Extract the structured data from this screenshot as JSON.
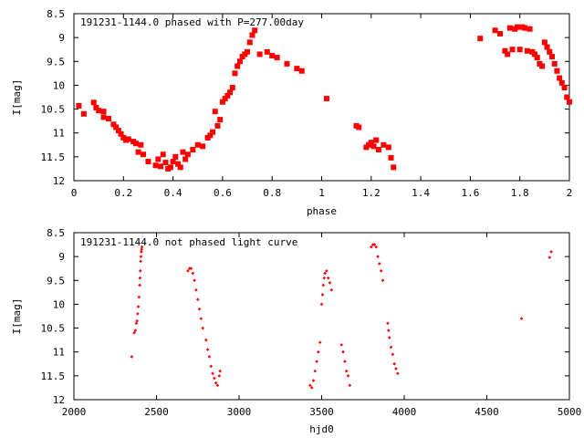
{
  "chart_data": [
    {
      "type": "scatter",
      "title": "191231-1144.0 phased with P=277.00day",
      "xlabel": "phase",
      "ylabel": "I[mag]",
      "xlim": [
        0,
        2
      ],
      "ylim": [
        12,
        8.5
      ],
      "y_inverted": true,
      "xticks": [
        0,
        0.2,
        0.4,
        0.6,
        0.8,
        1,
        1.2,
        1.4,
        1.6,
        1.8,
        2
      ],
      "xtick_labels": [
        "0",
        "0.2",
        "0.4",
        "0.6",
        "0.8",
        "1",
        "1.2",
        "1.4",
        "1.6",
        "1.8",
        "2"
      ],
      "yticks": [
        8.5,
        9,
        9.5,
        10,
        10.5,
        11,
        11.5,
        12
      ],
      "ytick_labels": [
        "8.5",
        "9",
        "9.5",
        "10",
        "10.5",
        "11",
        "11.5",
        "12"
      ],
      "grid": false,
      "marker": "filled-square",
      "color": "#ff0000",
      "series": [
        {
          "points": [
            [
              0.02,
              10.43
            ],
            [
              0.04,
              10.6
            ],
            [
              0.08,
              10.36
            ],
            [
              0.09,
              10.47
            ],
            [
              0.1,
              10.53
            ],
            [
              0.12,
              10.55
            ],
            [
              0.12,
              10.67
            ],
            [
              0.14,
              10.7
            ],
            [
              0.16,
              10.82
            ],
            [
              0.17,
              10.88
            ],
            [
              0.18,
              10.95
            ],
            [
              0.19,
              11.02
            ],
            [
              0.2,
              11.1
            ],
            [
              0.21,
              11.15
            ],
            [
              0.22,
              11.13
            ],
            [
              0.24,
              11.18
            ],
            [
              0.25,
              11.22
            ],
            [
              0.26,
              11.4
            ],
            [
              0.27,
              11.25
            ],
            [
              0.28,
              11.45
            ],
            [
              0.3,
              11.6
            ],
            [
              0.33,
              11.68
            ],
            [
              0.34,
              11.55
            ],
            [
              0.35,
              11.7
            ],
            [
              0.36,
              11.45
            ],
            [
              0.37,
              11.62
            ],
            [
              0.38,
              11.75
            ],
            [
              0.39,
              11.72
            ],
            [
              0.4,
              11.6
            ],
            [
              0.41,
              11.5
            ],
            [
              0.42,
              11.65
            ],
            [
              0.43,
              11.72
            ],
            [
              0.44,
              11.4
            ],
            [
              0.45,
              11.55
            ],
            [
              0.46,
              11.45
            ],
            [
              0.48,
              11.35
            ],
            [
              0.5,
              11.25
            ],
            [
              0.52,
              11.28
            ],
            [
              0.54,
              11.1
            ],
            [
              0.55,
              11.05
            ],
            [
              0.56,
              10.98
            ],
            [
              0.57,
              10.55
            ],
            [
              0.58,
              10.85
            ],
            [
              0.59,
              10.72
            ],
            [
              0.6,
              10.35
            ],
            [
              0.61,
              10.28
            ],
            [
              0.62,
              10.22
            ],
            [
              0.63,
              10.15
            ],
            [
              0.64,
              10.05
            ],
            [
              0.65,
              9.75
            ],
            [
              0.66,
              9.6
            ],
            [
              0.67,
              9.5
            ],
            [
              0.68,
              9.4
            ],
            [
              0.69,
              9.35
            ],
            [
              0.7,
              9.3
            ],
            [
              0.71,
              9.1
            ],
            [
              0.72,
              8.95
            ],
            [
              0.73,
              8.85
            ],
            [
              0.75,
              9.35
            ],
            [
              0.78,
              9.3
            ],
            [
              0.8,
              9.38
            ],
            [
              0.82,
              9.42
            ],
            [
              0.86,
              9.55
            ],
            [
              0.9,
              9.65
            ],
            [
              0.92,
              9.7
            ],
            [
              1.02,
              10.28
            ],
            [
              1.14,
              10.85
            ],
            [
              1.15,
              10.88
            ],
            [
              1.18,
              11.3
            ],
            [
              1.19,
              11.25
            ],
            [
              1.2,
              11.2
            ],
            [
              1.21,
              11.28
            ],
            [
              1.22,
              11.15
            ],
            [
              1.23,
              11.35
            ],
            [
              1.25,
              11.25
            ],
            [
              1.27,
              11.3
            ],
            [
              1.28,
              11.52
            ],
            [
              1.29,
              11.72
            ],
            [
              1.64,
              9.02
            ],
            [
              1.7,
              8.85
            ],
            [
              1.72,
              8.92
            ],
            [
              1.74,
              9.28
            ],
            [
              1.75,
              9.35
            ],
            [
              1.76,
              8.8
            ],
            [
              1.77,
              9.25
            ],
            [
              1.78,
              8.82
            ],
            [
              1.79,
              8.78
            ],
            [
              1.8,
              9.25
            ],
            [
              1.81,
              8.78
            ],
            [
              1.82,
              8.8
            ],
            [
              1.83,
              9.28
            ],
            [
              1.84,
              8.82
            ],
            [
              1.85,
              9.3
            ],
            [
              1.86,
              9.35
            ],
            [
              1.87,
              9.42
            ],
            [
              1.88,
              9.55
            ],
            [
              1.89,
              9.6
            ],
            [
              1.9,
              9.1
            ],
            [
              1.91,
              9.2
            ],
            [
              1.92,
              9.3
            ],
            [
              1.93,
              9.4
            ],
            [
              1.94,
              9.55
            ],
            [
              1.95,
              9.7
            ],
            [
              1.96,
              9.85
            ],
            [
              1.97,
              9.95
            ],
            [
              1.98,
              10.05
            ],
            [
              1.99,
              10.25
            ],
            [
              2.0,
              10.35
            ]
          ]
        }
      ]
    },
    {
      "type": "scatter",
      "title": "191231-1144.0 not phased light curve",
      "xlabel": "hjd0",
      "ylabel": "I[mag]",
      "xlim": [
        2000,
        5000
      ],
      "ylim": [
        12,
        8.5
      ],
      "y_inverted": true,
      "xticks": [
        2000,
        2500,
        3000,
        3500,
        4000,
        4500,
        5000
      ],
      "xtick_labels": [
        "2000",
        "2500",
        "3000",
        "3500",
        "4000",
        "4500",
        "5000"
      ],
      "yticks": [
        8.5,
        9,
        9.5,
        10,
        10.5,
        11,
        11.5,
        12
      ],
      "ytick_labels": [
        "8.5",
        "9",
        "9.5",
        "10",
        "10.5",
        "11",
        "11.5",
        "12"
      ],
      "grid": false,
      "marker": "small-diamond",
      "color": "#ff0000",
      "series": [
        {
          "points": [
            [
              2350,
              11.1
            ],
            [
              2365,
              10.6
            ],
            [
              2372,
              10.55
            ],
            [
              2378,
              10.4
            ],
            [
              2382,
              10.35
            ],
            [
              2386,
              10.2
            ],
            [
              2390,
              10.05
            ],
            [
              2394,
              9.85
            ],
            [
              2398,
              9.6
            ],
            [
              2400,
              9.45
            ],
            [
              2402,
              9.3
            ],
            [
              2404,
              9.1
            ],
            [
              2406,
              9.0
            ],
            [
              2408,
              8.9
            ],
            [
              2410,
              8.85
            ],
            [
              2412,
              8.8
            ],
            [
              2690,
              9.3
            ],
            [
              2700,
              9.25
            ],
            [
              2710,
              9.25
            ],
            [
              2720,
              9.35
            ],
            [
              2730,
              9.5
            ],
            [
              2740,
              9.7
            ],
            [
              2750,
              9.9
            ],
            [
              2760,
              10.1
            ],
            [
              2770,
              10.3
            ],
            [
              2780,
              10.5
            ],
            [
              2800,
              10.75
            ],
            [
              2810,
              10.95
            ],
            [
              2820,
              11.1
            ],
            [
              2830,
              11.3
            ],
            [
              2840,
              11.45
            ],
            [
              2850,
              11.55
            ],
            [
              2860,
              11.65
            ],
            [
              2870,
              11.7
            ],
            [
              2880,
              11.5
            ],
            [
              2885,
              11.4
            ],
            [
              3430,
              11.7
            ],
            [
              3440,
              11.75
            ],
            [
              3450,
              11.6
            ],
            [
              3460,
              11.4
            ],
            [
              3470,
              11.2
            ],
            [
              3480,
              11.0
            ],
            [
              3490,
              10.8
            ],
            [
              3500,
              10.0
            ],
            [
              3505,
              9.8
            ],
            [
              3510,
              9.6
            ],
            [
              3515,
              9.45
            ],
            [
              3520,
              9.35
            ],
            [
              3530,
              9.3
            ],
            [
              3540,
              9.45
            ],
            [
              3550,
              9.55
            ],
            [
              3560,
              9.7
            ],
            [
              3620,
              10.85
            ],
            [
              3630,
              11.0
            ],
            [
              3640,
              11.2
            ],
            [
              3650,
              11.4
            ],
            [
              3660,
              11.5
            ],
            [
              3670,
              11.7
            ],
            [
              3800,
              8.8
            ],
            [
              3810,
              8.75
            ],
            [
              3820,
              8.75
            ],
            [
              3830,
              8.8
            ],
            [
              3840,
              9.0
            ],
            [
              3850,
              9.15
            ],
            [
              3860,
              9.3
            ],
            [
              3870,
              9.5
            ],
            [
              3900,
              10.4
            ],
            [
              3905,
              10.55
            ],
            [
              3910,
              10.7
            ],
            [
              3920,
              10.9
            ],
            [
              3930,
              11.05
            ],
            [
              3940,
              11.25
            ],
            [
              3950,
              11.35
            ],
            [
              3960,
              11.45
            ],
            [
              4710,
              10.3
            ],
            [
              4880,
              9.02
            ],
            [
              4890,
              8.9
            ]
          ]
        }
      ]
    }
  ]
}
